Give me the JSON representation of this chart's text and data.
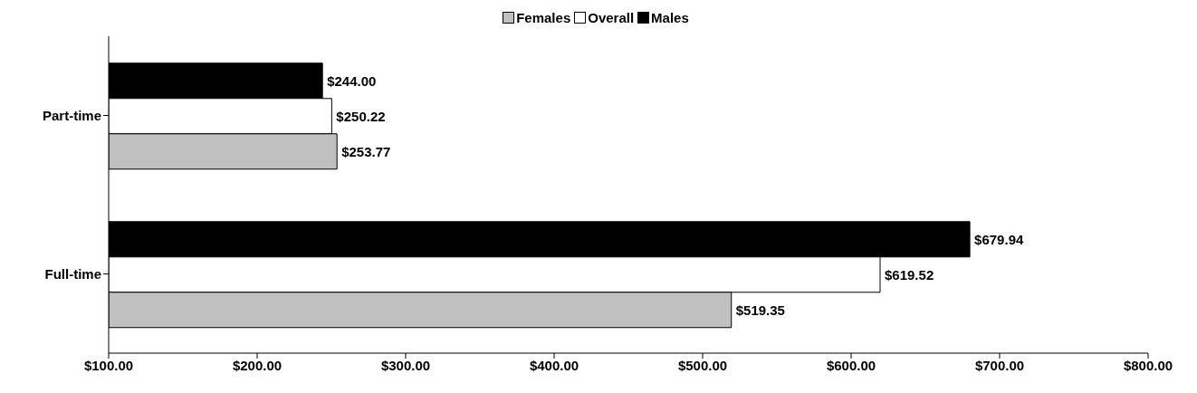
{
  "chart_data": {
    "type": "bar",
    "orientation": "horizontal",
    "categories": [
      "Part-time",
      "Full-time"
    ],
    "series": [
      {
        "name": "Females",
        "color": "#c0c0c0",
        "values": [
          253.77,
          519.35
        ],
        "value_labels": [
          "$253.77",
          "$519.35"
        ]
      },
      {
        "name": "Overall",
        "color": "#ffffff",
        "values": [
          250.22,
          619.52
        ],
        "value_labels": [
          "$250.22",
          "$619.52"
        ]
      },
      {
        "name": "Males",
        "color": "#000000",
        "values": [
          244.0,
          679.94
        ],
        "value_labels": [
          "$244.00",
          "$679.94"
        ]
      }
    ],
    "xlim": [
      100,
      800
    ],
    "xticks": [
      {
        "value": 100,
        "label": "$100.00"
      },
      {
        "value": 200,
        "label": "$200.00"
      },
      {
        "value": 300,
        "label": "$300.00"
      },
      {
        "value": 400,
        "label": "$400.00"
      },
      {
        "value": 500,
        "label": "$500.00"
      },
      {
        "value": 600,
        "label": "$600.00"
      },
      {
        "value": 700,
        "label": "$700.00"
      },
      {
        "value": 800,
        "label": "$800.00"
      }
    ],
    "grid": false,
    "legend": "top"
  }
}
